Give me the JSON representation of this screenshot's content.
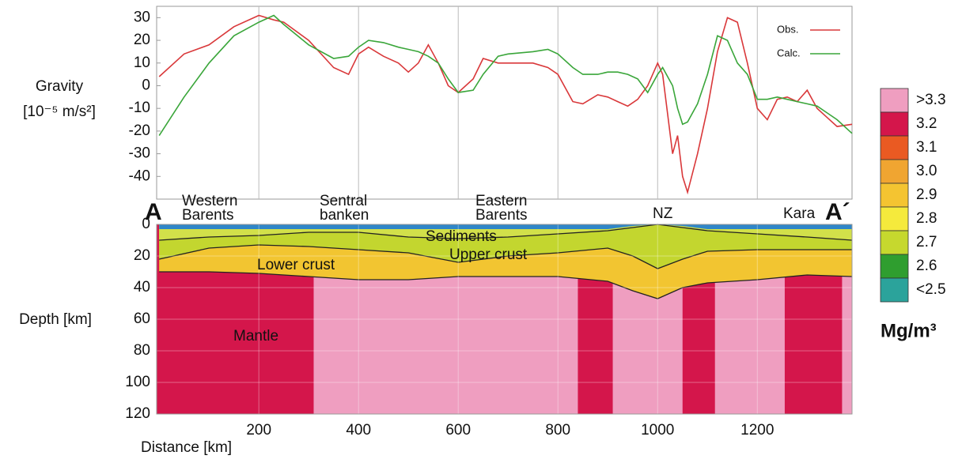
{
  "chart_data": [
    {
      "type": "line",
      "y_label": "Gravity",
      "y_unit": "[10⁻⁵ m/s²]",
      "xlim": [
        -5,
        1390
      ],
      "ylim": [
        -50,
        35
      ],
      "xgrid": [
        200,
        400,
        600,
        800,
        1000,
        1200
      ],
      "yticks": [
        -40,
        -30,
        -20,
        -10,
        0,
        10,
        20,
        30
      ],
      "legend": "upper right",
      "x": [
        0,
        50,
        100,
        150,
        200,
        230,
        250,
        300,
        350,
        380,
        400,
        420,
        450,
        480,
        500,
        520,
        540,
        560,
        580,
        600,
        630,
        650,
        680,
        700,
        750,
        780,
        800,
        830,
        850,
        880,
        900,
        920,
        940,
        960,
        980,
        1000,
        1010,
        1030,
        1040,
        1050,
        1060,
        1080,
        1100,
        1120,
        1140,
        1160,
        1180,
        1200,
        1220,
        1240,
        1260,
        1280,
        1300,
        1320,
        1340,
        1360,
        1390
      ],
      "series": [
        {
          "name": "Obs.",
          "color": "#d9383a",
          "values": [
            4,
            14,
            18,
            26,
            31,
            29,
            28,
            20,
            8,
            5,
            14,
            17,
            13,
            10,
            6,
            10,
            18,
            10,
            0,
            -3,
            3,
            12,
            10,
            10,
            10,
            8,
            5,
            -7,
            -8,
            -4,
            -5,
            -7,
            -9,
            -6,
            0,
            10,
            5,
            -30,
            -22,
            -40,
            -47,
            -30,
            -10,
            15,
            30,
            28,
            10,
            -10,
            -15,
            -6,
            -5,
            -7,
            -2,
            -10,
            -14,
            -18,
            -17
          ]
        },
        {
          "name": "Calc.",
          "color": "#3aa63a",
          "values": [
            -22,
            -5,
            10,
            22,
            28,
            31,
            27,
            18,
            12,
            13,
            17,
            20,
            19,
            17,
            16,
            15,
            13,
            10,
            3,
            -3,
            -2,
            5,
            13,
            14,
            15,
            16,
            14,
            8,
            5,
            5,
            6,
            6,
            5,
            3,
            -3,
            5,
            8,
            0,
            -10,
            -17,
            -16,
            -8,
            5,
            22,
            20,
            10,
            5,
            -6,
            -6,
            -5,
            -6,
            -7,
            -8,
            -9,
            -12,
            -15,
            -21
          ]
        }
      ]
    },
    {
      "type": "section",
      "x_label": "Distance [km]",
      "y_label": "Depth [km]",
      "xlim": [
        -5,
        1390
      ],
      "ylim": [
        0,
        120
      ],
      "xticks": [
        200,
        400,
        600,
        800,
        1000,
        1200
      ],
      "yticks": [
        0,
        20,
        40,
        60,
        80,
        100,
        120
      ],
      "grid": true,
      "x": [
        0,
        100,
        200,
        300,
        400,
        500,
        600,
        700,
        800,
        900,
        950,
        1000,
        1050,
        1100,
        1200,
        1300,
        1390
      ],
      "water_color": "#2f86c8",
      "boundaries": [
        [
          3,
          3,
          3,
          3,
          3,
          3,
          3,
          3,
          3,
          3,
          1,
          0,
          1,
          3,
          3,
          3,
          3
        ],
        [
          10,
          8,
          7,
          5,
          5,
          8,
          9,
          8,
          6,
          4,
          2,
          0,
          2,
          4,
          6,
          8,
          10
        ],
        [
          22,
          15,
          13,
          14,
          16,
          18,
          24,
          20,
          18,
          15,
          20,
          28,
          22,
          17,
          16,
          16,
          16
        ],
        [
          30,
          30,
          31,
          33,
          35,
          35,
          33,
          33,
          33,
          36,
          42,
          47,
          40,
          37,
          35,
          32,
          33
        ]
      ],
      "layers": [
        {
          "name": "Sediments",
          "color": "#d2e04a"
        },
        {
          "name": "Upper crust",
          "color": "#c3d62f"
        },
        {
          "name": "Lower crust",
          "color": "#f2c531"
        }
      ],
      "mantle": {
        "name": "Mantle",
        "light_color": "#ef9ec0",
        "dense_color": "#d4164b",
        "dense_blocks": [
          [
            -5,
            310
          ],
          [
            840,
            910
          ],
          [
            1050,
            1115
          ],
          [
            1255,
            1370
          ]
        ]
      },
      "regions": [
        "Western\nBarents",
        "Sentral\nbanken",
        "Eastern\nBarents",
        "NZ",
        "Kara"
      ],
      "profile_start": "A",
      "profile_end": "A´",
      "colorbar": {
        "unit": "Mg/m³",
        "labels": [
          ">3.3",
          "3.2",
          "3.1",
          "3.0",
          "2.9",
          "2.8",
          "2.7",
          "2.6",
          "<2.5"
        ],
        "colors": [
          "#ef9ec0",
          "#d4164b",
          "#ea5a22",
          "#f0a531",
          "#f4c431",
          "#f5ea3c",
          "#c6d82e",
          "#2f9e2f",
          "#2ba39b"
        ]
      }
    }
  ]
}
